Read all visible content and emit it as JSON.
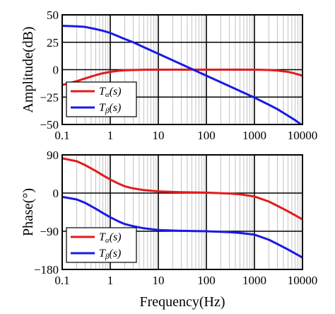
{
  "chart_data": [
    {
      "type": "line",
      "xscale": "log",
      "xlim": [
        0.1,
        10000
      ],
      "ylim": [
        -50,
        50
      ],
      "ylabel": "Amplitude(dB)",
      "xlabel": "",
      "x_ticks": [
        "0.1",
        "1",
        "10",
        "100",
        "1000",
        "10000"
      ],
      "y_ticks": [
        "50",
        "25",
        "0",
        "−25",
        "−50"
      ],
      "y_tick_values": [
        50,
        25,
        0,
        -25,
        -50
      ],
      "grid": "log minor + decade major",
      "legend_position": "bottom-left",
      "series": [
        {
          "name": "Tα(s)",
          "legend_main": "T",
          "legend_sub": "α",
          "legend_tail": "(s)",
          "color": "#e31b1b",
          "x": [
            0.1,
            0.15,
            0.2,
            0.3,
            0.5,
            0.7,
            1,
            1.5,
            2,
            3,
            5,
            10,
            20,
            50,
            100,
            300,
            1000,
            2000,
            3000,
            5000,
            7000,
            10000
          ],
          "values": [
            -14,
            -12,
            -10.5,
            -8,
            -5,
            -3.3,
            -2,
            -1,
            -0.6,
            -0.3,
            -0.1,
            0,
            0,
            0,
            0,
            0,
            0,
            -0.3,
            -0.8,
            -2,
            -3.5,
            -5.5
          ]
        },
        {
          "name": "Tβ(s)",
          "legend_main": "T",
          "legend_sub": "β",
          "legend_tail": "(s)",
          "color": "#1a1ae6",
          "x": [
            0.1,
            0.2,
            0.3,
            0.5,
            0.7,
            1,
            2,
            3,
            5,
            10,
            30,
            100,
            300,
            1000,
            2000,
            3000,
            5000,
            7000,
            10000
          ],
          "values": [
            40,
            39.5,
            39,
            37,
            35.5,
            33.5,
            28,
            25,
            20.5,
            14.5,
            5,
            -5.5,
            -15,
            -25.5,
            -32,
            -36,
            -42,
            -46,
            -51
          ]
        }
      ]
    },
    {
      "type": "line",
      "xscale": "log",
      "xlim": [
        0.1,
        10000
      ],
      "ylim": [
        -180,
        90
      ],
      "ylabel": "Phase(°)",
      "xlabel": "Frequency(Hz)",
      "x_ticks": [
        "0.1",
        "1",
        "10",
        "100",
        "1000",
        "10000"
      ],
      "y_ticks": [
        "90",
        "0",
        "−90",
        "−180"
      ],
      "y_tick_values": [
        90,
        0,
        -90,
        -180
      ],
      "grid": "log minor + decade major",
      "legend_position": "bottom-left",
      "series": [
        {
          "name": "Tα(s)",
          "legend_main": "T",
          "legend_sub": "α",
          "legend_tail": "(s)",
          "color": "#e31b1b",
          "x": [
            0.1,
            0.2,
            0.3,
            0.5,
            0.7,
            1,
            1.5,
            2,
            3,
            5,
            10,
            30,
            100,
            300,
            500,
            1000,
            2000,
            3000,
            5000,
            10000
          ],
          "values": [
            82,
            75,
            66,
            52,
            42,
            32,
            22,
            16,
            11,
            7,
            4,
            2,
            1,
            -1,
            -3,
            -8,
            -20,
            -30,
            -43,
            -62
          ]
        },
        {
          "name": "Tβ(s)",
          "legend_main": "T",
          "legend_sub": "β",
          "legend_tail": "(s)",
          "color": "#1a1ae6",
          "x": [
            0.1,
            0.2,
            0.3,
            0.5,
            0.7,
            1,
            1.5,
            2,
            3,
            5,
            10,
            30,
            100,
            300,
            500,
            1000,
            2000,
            3000,
            5000,
            10000
          ],
          "values": [
            -9,
            -15,
            -23,
            -37,
            -47,
            -57,
            -67,
            -73,
            -78,
            -83,
            -87,
            -89,
            -90,
            -92,
            -94,
            -98,
            -110,
            -120,
            -133,
            -152
          ]
        }
      ]
    }
  ]
}
